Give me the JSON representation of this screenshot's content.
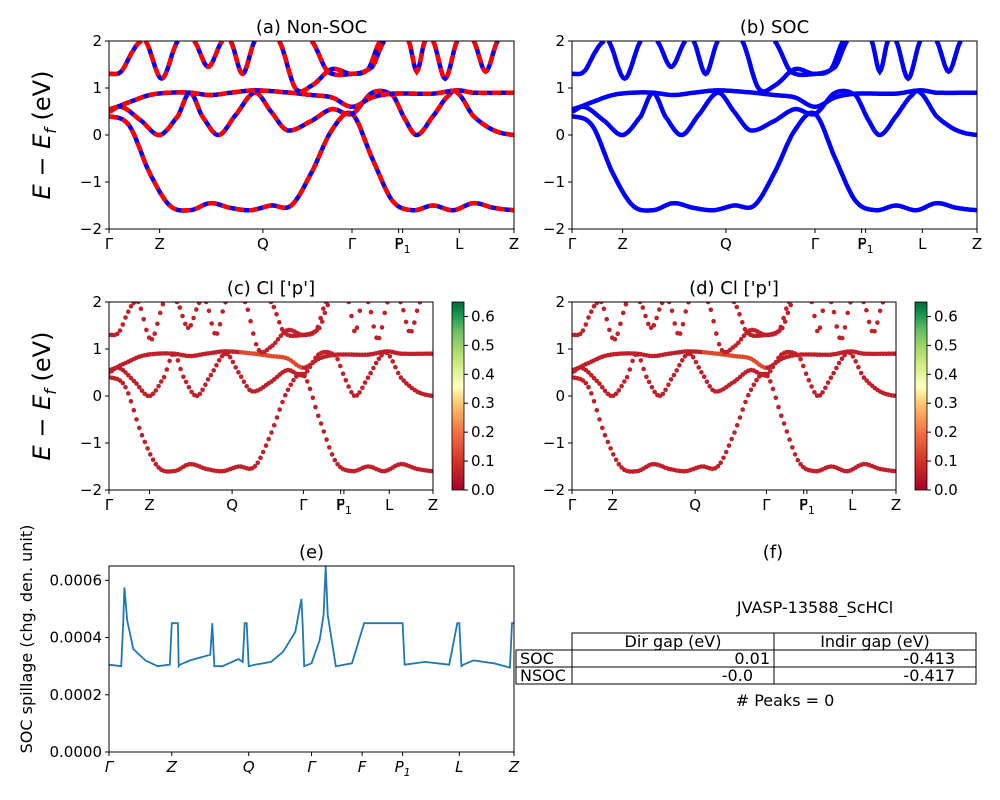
{
  "chart_data": [
    {
      "id": "a",
      "type": "line",
      "title": "(a) Non-SOC",
      "ylabel": "E − E_f (eV)",
      "ylim": [
        -2,
        2
      ],
      "yticks": [
        "−2",
        "−1",
        "0",
        "1",
        "2"
      ],
      "kpath": [
        "Γ",
        "Z",
        "Q",
        "Γ",
        "F",
        "P1",
        "L",
        "Z"
      ],
      "kpos": [
        0,
        0.125,
        0.38,
        0.6,
        0.715,
        0.725,
        0.865,
        1.0
      ],
      "style": "dashed-red-on-blue",
      "colors": {
        "primary": "#0000ff",
        "overlay": "#ff0000"
      },
      "bands": [
        [
          [
            0,
            0.4
          ],
          [
            0.05,
            0.2
          ],
          [
            0.1,
            -0.8
          ],
          [
            0.15,
            -1.5
          ],
          [
            0.2,
            -1.6
          ],
          [
            0.25,
            -1.45
          ],
          [
            0.3,
            -1.55
          ],
          [
            0.35,
            -1.6
          ],
          [
            0.4,
            -1.5
          ],
          [
            0.45,
            -1.5
          ],
          [
            0.5,
            -0.8
          ],
          [
            0.55,
            0.1
          ],
          [
            0.6,
            0.45
          ],
          [
            0.65,
            -0.5
          ],
          [
            0.7,
            -1.4
          ],
          [
            0.75,
            -1.6
          ],
          [
            0.8,
            -1.5
          ],
          [
            0.85,
            -1.6
          ],
          [
            0.9,
            -1.45
          ],
          [
            0.95,
            -1.55
          ],
          [
            1.0,
            -1.6
          ]
        ],
        [
          [
            0,
            0.5
          ],
          [
            0.03,
            0.6
          ],
          [
            0.08,
            0.3
          ],
          [
            0.125,
            0.0
          ],
          [
            0.17,
            0.4
          ],
          [
            0.2,
            0.9
          ],
          [
            0.23,
            0.4
          ],
          [
            0.27,
            0.0
          ],
          [
            0.31,
            0.4
          ],
          [
            0.36,
            0.9
          ],
          [
            0.4,
            0.5
          ],
          [
            0.44,
            0.1
          ],
          [
            0.5,
            0.3
          ],
          [
            0.55,
            0.55
          ],
          [
            0.6,
            0.45
          ],
          [
            0.65,
            0.9
          ],
          [
            0.7,
            0.85
          ],
          [
            0.73,
            0.35
          ],
          [
            0.76,
            0.0
          ],
          [
            0.8,
            0.4
          ],
          [
            0.84,
            0.85
          ],
          [
            0.86,
            0.9
          ],
          [
            0.9,
            0.4
          ],
          [
            0.95,
            0.1
          ],
          [
            1.0,
            0.0
          ]
        ],
        [
          [
            0,
            0.55
          ],
          [
            0.05,
            0.7
          ],
          [
            0.1,
            0.85
          ],
          [
            0.15,
            0.9
          ],
          [
            0.2,
            0.9
          ],
          [
            0.25,
            0.85
          ],
          [
            0.3,
            0.9
          ],
          [
            0.36,
            0.95
          ],
          [
            0.45,
            0.9
          ],
          [
            0.5,
            0.85
          ],
          [
            0.55,
            0.8
          ],
          [
            0.6,
            0.6
          ],
          [
            0.65,
            0.8
          ],
          [
            0.7,
            0.88
          ],
          [
            0.8,
            0.88
          ],
          [
            0.86,
            0.95
          ],
          [
            0.9,
            0.9
          ],
          [
            1.0,
            0.9
          ]
        ],
        [
          [
            0,
            1.3
          ],
          [
            0.03,
            1.35
          ],
          [
            0.06,
            1.8
          ],
          [
            0.08,
            2.0
          ]
        ],
        [
          [
            0.09,
            2.0
          ],
          [
            0.13,
            1.2
          ],
          [
            0.17,
            2.0
          ]
        ],
        [
          [
            0.21,
            2.0
          ],
          [
            0.245,
            1.45
          ],
          [
            0.28,
            2.0
          ]
        ],
        [
          [
            0.3,
            2.0
          ],
          [
            0.33,
            1.3
          ],
          [
            0.36,
            2.0
          ]
        ],
        [
          [
            0.42,
            2.0
          ],
          [
            0.46,
            1.0
          ],
          [
            0.5,
            1.05
          ],
          [
            0.55,
            1.4
          ],
          [
            0.6,
            1.3
          ],
          [
            0.65,
            1.45
          ],
          [
            0.68,
            2.0
          ]
        ],
        [
          [
            0.74,
            2.0
          ],
          [
            0.76,
            1.35
          ],
          [
            0.78,
            2.0
          ]
        ],
        [
          [
            0.8,
            2.0
          ],
          [
            0.83,
            1.2
          ],
          [
            0.86,
            2.0
          ]
        ],
        [
          [
            0.9,
            2.0
          ],
          [
            0.93,
            1.35
          ],
          [
            0.96,
            2.0
          ]
        ],
        [
          [
            0.5,
            2.0
          ],
          [
            0.54,
            1.35
          ],
          [
            0.6,
            1.3
          ],
          [
            0.64,
            1.4
          ],
          [
            0.67,
            2.0
          ]
        ]
      ]
    },
    {
      "id": "b",
      "type": "line",
      "title": "(b) SOC",
      "ylim": [
        -2,
        2
      ],
      "yticks": [
        "−2",
        "−1",
        "0",
        "1",
        "2"
      ],
      "kpath": [
        "Γ",
        "Z",
        "Q",
        "Γ",
        "F",
        "P1",
        "L",
        "Z"
      ],
      "kpos": [
        0,
        0.125,
        0.38,
        0.6,
        0.715,
        0.725,
        0.865,
        1.0
      ],
      "style": "solid-blue",
      "colors": {
        "primary": "#0000ff"
      }
    },
    {
      "id": "c",
      "type": "scatter",
      "title": "(c)  Cl ['p']",
      "ylabel": "E − E_f (eV)",
      "ylim": [
        -2,
        2
      ],
      "yticks": [
        "−2",
        "−1",
        "0",
        "1",
        "2"
      ],
      "kpath": [
        "Γ",
        "Z",
        "Q",
        "Γ",
        "F",
        "P1",
        "L",
        "Z"
      ],
      "kpos": [
        0,
        0.125,
        0.38,
        0.6,
        0.715,
        0.725,
        0.865,
        1.0
      ],
      "colorbar": {
        "min": 0.0,
        "max": 0.65,
        "ticks": [
          "0.0",
          "0.1",
          "0.2",
          "0.3",
          "0.4",
          "0.5",
          "0.6"
        ],
        "colormap": "RdYlGn"
      },
      "colors": {
        "point": "#c0202a",
        "point_light": "#e04a2c"
      }
    },
    {
      "id": "d",
      "type": "scatter",
      "title": "(d) Cl ['p']",
      "ylim": [
        -2,
        2
      ],
      "yticks": [
        "−2",
        "−1",
        "0",
        "1",
        "2"
      ],
      "kpath": [
        "Γ",
        "Z",
        "Q",
        "Γ",
        "F",
        "P1",
        "L",
        "Z"
      ],
      "kpos": [
        0,
        0.125,
        0.38,
        0.6,
        0.715,
        0.725,
        0.865,
        1.0
      ],
      "colorbar": {
        "min": 0.0,
        "max": 0.65,
        "ticks": [
          "0.0",
          "0.1",
          "0.2",
          "0.3",
          "0.4",
          "0.5",
          "0.6"
        ],
        "colormap": "RdYlGn"
      },
      "colors": {
        "point": "#c0202a",
        "point_light": "#e04a2c"
      }
    },
    {
      "id": "e",
      "type": "line",
      "title": "(e)",
      "ylabel": "SOC spillage (chg. den. unit)",
      "ylim": [
        0,
        0.00065
      ],
      "yticks": [
        {
          "value": 0,
          "label": "0.0000"
        },
        {
          "value": 0.0002,
          "label": "0.0002"
        },
        {
          "value": 0.0004,
          "label": "0.0004"
        },
        {
          "value": 0.0006,
          "label": "0.0006"
        }
      ],
      "kpath": [
        "Γ",
        "Z",
        "Q",
        "Γ",
        "F",
        "P1",
        "L",
        "Z"
      ],
      "kpos": [
        0,
        0.155,
        0.345,
        0.5,
        0.625,
        0.725,
        0.865,
        1.0
      ],
      "colors": {
        "line": "#1f77b4"
      },
      "x": [
        0,
        0.03,
        0.035,
        0.038,
        0.045,
        0.06,
        0.09,
        0.12,
        0.15,
        0.155,
        0.158,
        0.17,
        0.172,
        0.175,
        0.2,
        0.25,
        0.255,
        0.26,
        0.28,
        0.32,
        0.33,
        0.335,
        0.34,
        0.345,
        0.36,
        0.4,
        0.43,
        0.46,
        0.475,
        0.478,
        0.482,
        0.5,
        0.52,
        0.53,
        0.535,
        0.54,
        0.56,
        0.6,
        0.63,
        0.635,
        0.72,
        0.725,
        0.73,
        0.78,
        0.84,
        0.86,
        0.862,
        0.865,
        0.87,
        0.875,
        0.9,
        0.95,
        0.99,
        0.995,
        1.0
      ],
      "y": [
        0.000305,
        0.0003,
        0.00045,
        0.000575,
        0.00046,
        0.00036,
        0.00032,
        0.0003,
        0.000305,
        0.00045,
        0.00045,
        0.00045,
        0.0003,
        0.000305,
        0.00032,
        0.00034,
        0.00045,
        0.0003,
        0.0003,
        0.000325,
        0.000315,
        0.00045,
        0.00045,
        0.0003,
        0.000305,
        0.000315,
        0.00035,
        0.00042,
        0.000535,
        0.00045,
        0.0003,
        0.00031,
        0.00039,
        0.00048,
        0.00065,
        0.00048,
        0.0003,
        0.00031,
        0.00045,
        0.00045,
        0.00045,
        0.00045,
        0.000305,
        0.000315,
        0.000305,
        0.00045,
        0.00045,
        0.00045,
        0.0003,
        0.000305,
        0.00032,
        0.00031,
        0.000295,
        0.00045,
        0.00045
      ]
    }
  ],
  "panel_f": {
    "title": "(f)",
    "material": "JVASP-13588_ScHCl",
    "table": {
      "col_headers": [
        "Dir gap (eV)",
        "Indir gap (eV)"
      ],
      "rows": [
        {
          "label": "SOC",
          "dir": "0.01",
          "indir": "-0.413"
        },
        {
          "label": "NSOC",
          "dir": "-0.0",
          "indir": "-0.417"
        }
      ]
    },
    "peaks": "# Peaks = 0"
  }
}
